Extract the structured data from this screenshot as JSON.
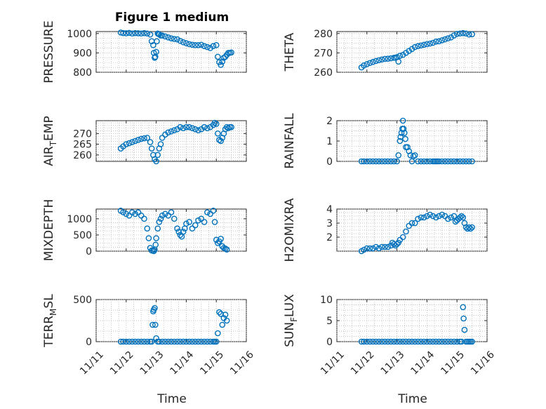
{
  "figure_title": "Figure 1 medium",
  "chart_data": [
    {
      "id": "pressure",
      "type": "scatter",
      "ylabel": "PRESSURE",
      "ylabel_sub": "",
      "yticks": [
        800,
        900,
        1000
      ],
      "ylim": [
        800,
        1010
      ],
      "x": [
        0.82,
        0.9,
        1.0,
        1.1,
        1.2,
        1.3,
        1.4,
        1.5,
        1.6,
        1.7,
        1.8,
        1.85,
        1.9,
        1.92,
        1.95,
        1.97,
        2.0,
        2.02,
        2.05,
        2.07,
        2.1,
        2.15,
        2.2,
        2.3,
        2.4,
        2.5,
        2.6,
        2.7,
        2.8,
        2.9,
        3.0,
        3.1,
        3.2,
        3.3,
        3.4,
        3.5,
        3.6,
        3.7,
        3.8,
        3.9,
        4.0,
        4.05,
        4.1,
        4.15,
        4.2,
        4.25,
        4.3,
        4.35,
        4.4,
        4.45,
        4.5
      ],
      "y": [
        1005,
        1002,
        1001,
        1003,
        1000,
        1002,
        1001,
        1000,
        1002,
        1000,
        995,
        960,
        940,
        900,
        875,
        880,
        905,
        960,
        1000,
        998,
        995,
        990,
        990,
        985,
        980,
        975,
        972,
        970,
        962,
        955,
        950,
        945,
        942,
        940,
        940,
        942,
        935,
        930,
        925,
        935,
        940,
        880,
        852,
        838,
        855,
        875,
        880,
        890,
        900,
        900,
        902
      ]
    },
    {
      "id": "theta",
      "type": "scatter",
      "ylabel": "THETA",
      "ylabel_sub": "",
      "yticks": [
        260,
        270,
        280
      ],
      "ylim": [
        260,
        281
      ],
      "x": [
        0.82,
        0.9,
        1.0,
        1.1,
        1.2,
        1.3,
        1.4,
        1.5,
        1.6,
        1.7,
        1.8,
        1.9,
        1.95,
        2.0,
        2.05,
        2.1,
        2.2,
        2.3,
        2.4,
        2.5,
        2.6,
        2.7,
        2.8,
        2.9,
        3.0,
        3.1,
        3.2,
        3.3,
        3.4,
        3.5,
        3.6,
        3.7,
        3.8,
        3.9,
        4.0,
        4.1,
        4.2,
        4.3,
        4.4,
        4.5
      ],
      "y": [
        262.5,
        263.5,
        264.2,
        264.8,
        265.3,
        265.8,
        266.2,
        266.6,
        266.9,
        267.0,
        267.2,
        267.5,
        267.5,
        267.8,
        265.5,
        268.5,
        269.0,
        270.0,
        271.0,
        272.0,
        273.0,
        273.5,
        273.8,
        274.2,
        274.5,
        274.8,
        275.2,
        275.8,
        276.0,
        276.5,
        277.0,
        277.5,
        278.0,
        279.0,
        279.8,
        280.0,
        280.2,
        280.0,
        279.5,
        279.6
      ]
    },
    {
      "id": "airtemp",
      "type": "scatter",
      "ylabel": "AIR",
      "ylabel_sub": "T",
      "ylabel_suffix": "EMP",
      "yticks": [
        260,
        265,
        270
      ],
      "ylim": [
        257,
        276
      ],
      "x": [
        0.82,
        0.9,
        1.0,
        1.1,
        1.2,
        1.3,
        1.4,
        1.5,
        1.6,
        1.7,
        1.8,
        1.85,
        1.9,
        1.95,
        2.0,
        2.05,
        2.1,
        2.15,
        2.2,
        2.3,
        2.4,
        2.5,
        2.6,
        2.7,
        2.8,
        2.9,
        3.0,
        3.1,
        3.2,
        3.3,
        3.4,
        3.5,
        3.6,
        3.7,
        3.8,
        3.9,
        3.95,
        4.0,
        4.05,
        4.1,
        4.15,
        4.2,
        4.25,
        4.3,
        4.35,
        4.4,
        4.45,
        4.5
      ],
      "y": [
        263.0,
        264.0,
        265.0,
        265.5,
        266.0,
        266.5,
        267.0,
        267.5,
        267.8,
        268.0,
        266.0,
        263.0,
        260.0,
        258.0,
        257.0,
        260.0,
        263.0,
        265.0,
        268.0,
        269.5,
        270.5,
        271.0,
        271.5,
        272.0,
        273.0,
        272.5,
        273.0,
        273.0,
        272.5,
        272.0,
        271.5,
        272.0,
        273.0,
        272.5,
        273.0,
        274.0,
        275.0,
        274.5,
        270.0,
        267.0,
        266.5,
        268.0,
        270.0,
        272.0,
        273.0,
        272.5,
        273.0,
        273.0
      ]
    },
    {
      "id": "rainfall",
      "type": "scatter",
      "ylabel": "RAINFALL",
      "ylabel_sub": "",
      "yticks": [
        0,
        1,
        2
      ],
      "ylim": [
        0,
        2
      ],
      "x": [
        0.82,
        0.9,
        1.0,
        1.1,
        1.2,
        1.3,
        1.4,
        1.5,
        1.6,
        1.7,
        1.8,
        1.9,
        2.0,
        2.05,
        2.1,
        2.12,
        2.15,
        2.18,
        2.2,
        2.22,
        2.25,
        2.28,
        2.3,
        2.35,
        2.4,
        2.45,
        2.5,
        2.55,
        2.6,
        2.7,
        2.8,
        2.9,
        3.0,
        3.1,
        3.2,
        3.25,
        3.3,
        3.35,
        3.4,
        3.5,
        3.6,
        3.7,
        3.8,
        3.9,
        4.0,
        4.1,
        4.2,
        4.3,
        4.4,
        4.5
      ],
      "y": [
        0,
        0,
        0,
        0,
        0,
        0,
        0,
        0,
        0,
        0,
        0,
        0,
        0,
        0.3,
        1.0,
        1.2,
        1.4,
        1.6,
        2.0,
        1.6,
        1.4,
        1.1,
        0.7,
        0.7,
        0.5,
        0.3,
        0,
        0.25,
        0.3,
        0,
        0,
        0,
        0,
        0,
        0,
        0,
        0,
        0,
        0,
        0,
        0,
        0,
        0,
        0,
        0,
        0,
        0,
        0,
        0,
        0
      ]
    },
    {
      "id": "mixdepth",
      "type": "scatter",
      "ylabel": "MIXDEPTH",
      "ylabel_sub": "",
      "yticks": [
        0,
        500,
        1000
      ],
      "ylim": [
        0,
        1300
      ],
      "x": [
        0.82,
        0.9,
        1.0,
        1.1,
        1.2,
        1.3,
        1.4,
        1.5,
        1.6,
        1.7,
        1.75,
        1.8,
        1.85,
        1.9,
        1.92,
        1.95,
        1.98,
        2.0,
        2.05,
        2.1,
        2.15,
        2.2,
        2.3,
        2.4,
        2.5,
        2.6,
        2.7,
        2.75,
        2.8,
        2.85,
        2.9,
        2.95,
        3.0,
        3.1,
        3.2,
        3.3,
        3.4,
        3.5,
        3.6,
        3.7,
        3.8,
        3.9,
        3.95,
        4.0,
        4.05,
        4.1,
        4.15,
        4.2,
        4.25,
        4.3,
        4.35
      ],
      "y": [
        1250,
        1200,
        1150,
        1100,
        1200,
        1150,
        1200,
        1100,
        1000,
        700,
        400,
        100,
        20,
        30,
        0,
        50,
        200,
        400,
        700,
        900,
        1000,
        1100,
        1150,
        1100,
        1200,
        1000,
        700,
        600,
        500,
        450,
        600,
        700,
        850,
        900,
        700,
        800,
        950,
        1000,
        900,
        1200,
        1150,
        1250,
        900,
        350,
        250,
        300,
        380,
        150,
        100,
        80,
        50
      ]
    },
    {
      "id": "h2omixra",
      "type": "scatter",
      "ylabel": "H2OMIXRA",
      "ylabel_sub": "",
      "yticks": [
        2,
        3,
        4
      ],
      "ylim": [
        1.0,
        4.0
      ],
      "x": [
        0.82,
        0.9,
        1.0,
        1.1,
        1.2,
        1.3,
        1.4,
        1.5,
        1.6,
        1.7,
        1.8,
        1.85,
        1.9,
        1.95,
        2.0,
        2.05,
        2.1,
        2.2,
        2.3,
        2.4,
        2.5,
        2.6,
        2.7,
        2.8,
        2.9,
        3.0,
        3.1,
        3.2,
        3.3,
        3.4,
        3.5,
        3.6,
        3.7,
        3.8,
        3.9,
        3.95,
        4.0,
        4.05,
        4.1,
        4.15,
        4.2,
        4.25,
        4.3,
        4.35,
        4.4,
        4.45,
        4.5
      ],
      "y": [
        1.0,
        1.1,
        1.2,
        1.2,
        1.2,
        1.3,
        1.2,
        1.3,
        1.3,
        1.3,
        1.4,
        1.6,
        1.5,
        1.4,
        1.5,
        1.6,
        1.8,
        2.0,
        2.4,
        2.8,
        3.0,
        3.0,
        3.3,
        3.4,
        3.4,
        3.5,
        3.6,
        3.5,
        3.4,
        3.5,
        3.6,
        3.5,
        3.3,
        3.4,
        3.5,
        3.1,
        3.2,
        3.3,
        3.4,
        3.5,
        3.4,
        3.0,
        2.7,
        2.6,
        2.7,
        2.6,
        2.7
      ]
    },
    {
      "id": "terrmsl",
      "type": "scatter",
      "ylabel": "TERR",
      "ylabel_sub": "M",
      "ylabel_suffix": "SL",
      "yticks": [
        0,
        500
      ],
      "ylim": [
        0,
        500
      ],
      "x": [
        0.82,
        0.9,
        1.0,
        1.1,
        1.2,
        1.3,
        1.4,
        1.5,
        1.6,
        1.7,
        1.8,
        1.85,
        1.88,
        1.9,
        1.92,
        1.95,
        1.97,
        2.0,
        2.05,
        2.1,
        2.2,
        2.3,
        2.4,
        2.5,
        2.6,
        2.7,
        2.8,
        2.9,
        3.0,
        3.1,
        3.2,
        3.3,
        3.4,
        3.5,
        3.6,
        3.7,
        3.8,
        3.9,
        3.95,
        4.0,
        4.05,
        4.1,
        4.15,
        4.2,
        4.25,
        4.3,
        4.35
      ],
      "y": [
        0,
        0,
        0,
        0,
        0,
        0,
        0,
        0,
        0,
        0,
        0,
        0,
        200,
        360,
        380,
        400,
        200,
        40,
        0,
        0,
        0,
        0,
        0,
        0,
        0,
        0,
        0,
        0,
        0,
        0,
        0,
        0,
        0,
        0,
        0,
        0,
        0,
        0,
        0,
        0,
        100,
        350,
        330,
        200,
        280,
        320,
        250
      ]
    },
    {
      "id": "sunflux",
      "type": "scatter",
      "ylabel": "SUN",
      "ylabel_sub": "F",
      "ylabel_suffix": "LUX",
      "yticks": [
        0,
        5,
        10
      ],
      "ylim": [
        0,
        10
      ],
      "x": [
        0.82,
        0.9,
        1.0,
        1.1,
        1.2,
        1.3,
        1.4,
        1.5,
        1.6,
        1.7,
        1.8,
        1.9,
        2.0,
        2.1,
        2.2,
        2.3,
        2.4,
        2.5,
        2.6,
        2.7,
        2.8,
        2.9,
        3.0,
        3.1,
        3.2,
        3.3,
        3.4,
        3.5,
        3.6,
        3.7,
        3.8,
        3.9,
        4.0,
        4.1,
        4.15,
        4.2,
        4.22,
        4.25,
        4.3,
        4.35,
        4.4,
        4.45,
        4.5
      ],
      "y": [
        0,
        0,
        0,
        0,
        0,
        0,
        0,
        0,
        0,
        0,
        0,
        0,
        0,
        0,
        0,
        0,
        0,
        0,
        0,
        0,
        0,
        0,
        0,
        0,
        0,
        0,
        0,
        0,
        0,
        0,
        0,
        0,
        0,
        0,
        0,
        8.2,
        5.5,
        2.8,
        0,
        0,
        0,
        0,
        0
      ]
    }
  ],
  "shared": {
    "xticks": [
      "11/11",
      "11/12",
      "11/13",
      "11/14",
      "11/15",
      "11/16"
    ],
    "xlim": [
      0,
      5
    ],
    "xlabel": "Time",
    "marker_color": "#0072BD"
  }
}
